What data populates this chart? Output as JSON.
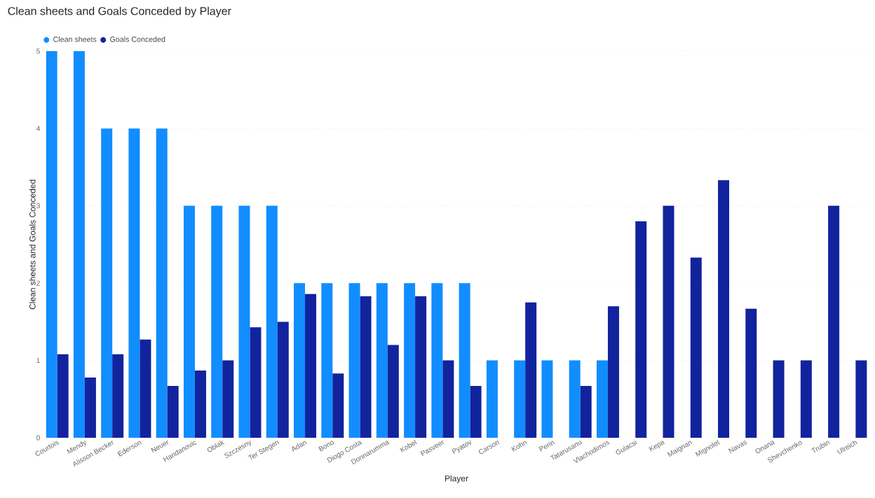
{
  "chart_data": {
    "type": "bar",
    "title": "Clean sheets and Goals Conceded by Player",
    "xlabel": "Player",
    "ylabel": "Clean sheets and Goals Conceded",
    "categories": [
      "Courtois",
      "Mendy",
      "Alisson Becker",
      "Ederson",
      "Neuer",
      "Handanovic",
      "Oblak",
      "Szczesny",
      "Ter Stegen",
      "Adan",
      "Bono",
      "Diogo Costa",
      "Donnarumma",
      "Kobel",
      "Pasveer",
      "Pyatov",
      "Carson",
      "Kohn",
      "Perin",
      "Tatarusanu",
      "Vlachodimos",
      "Gulacsi",
      "Kepa",
      "Maignan",
      "Mignolet",
      "Navas",
      "Onana",
      "Shevchenko",
      "Trubin",
      "Ulreich"
    ],
    "series": [
      {
        "name": "Clean sheets",
        "color": "#118dff",
        "values": [
          5,
          5,
          4,
          4,
          4,
          3,
          3,
          3,
          3,
          2,
          2,
          2,
          2,
          2,
          2,
          2,
          1,
          1,
          1,
          1,
          1,
          null,
          null,
          null,
          null,
          null,
          null,
          null,
          null,
          null
        ]
      },
      {
        "name": "Goals Conceded",
        "color": "#12239e",
        "values": [
          1.08,
          0.78,
          1.08,
          1.27,
          0.67,
          0.87,
          1.0,
          1.43,
          1.5,
          1.86,
          0.83,
          1.83,
          1.2,
          1.83,
          1.0,
          0.67,
          null,
          1.75,
          null,
          0.67,
          1.7,
          2.8,
          3.0,
          2.33,
          3.33,
          1.67,
          1.0,
          1.0,
          3.0,
          1.0
        ]
      }
    ],
    "ylim": [
      0,
      5
    ],
    "yticks": [
      0,
      1,
      2,
      3,
      4,
      5
    ],
    "grid": "y",
    "legend": "top left"
  }
}
